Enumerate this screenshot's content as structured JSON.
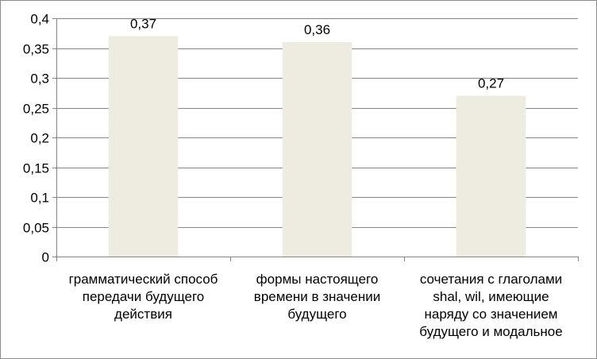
{
  "chart_data": {
    "type": "bar",
    "categories": [
      "грамматический способ передачи будущего действия",
      "формы настоящего времени в значении будущего",
      "сочетания с глаголами shal, wil, имеющие наряду со значением будущего и модальное"
    ],
    "category_lines": [
      [
        "грамматический способ",
        "передачи будущего",
        "действия"
      ],
      [
        "формы настоящего",
        "времени в значении",
        "будущего"
      ],
      [
        "сочетания с глаголами",
        "shal, wil, имеющие",
        "наряду со значением",
        "будущего и модальное"
      ]
    ],
    "values": [
      0.37,
      0.36,
      0.27
    ],
    "value_labels": [
      "0,37",
      "0,36",
      "0,27"
    ],
    "y_ticks": [
      0,
      0.05,
      0.1,
      0.15,
      0.2,
      0.25,
      0.3,
      0.35,
      0.4
    ],
    "y_tick_labels": [
      "0",
      "0,05",
      "0,1",
      "0,15",
      "0,2",
      "0,25",
      "0,3",
      "0,35",
      "0,4"
    ],
    "ylim": [
      0,
      0.4
    ],
    "grid": true,
    "legend": "none",
    "colors": {
      "bar": "#eeece1",
      "grid": "#868686",
      "axis": "#868686",
      "frame": "#8c8c8c"
    }
  }
}
